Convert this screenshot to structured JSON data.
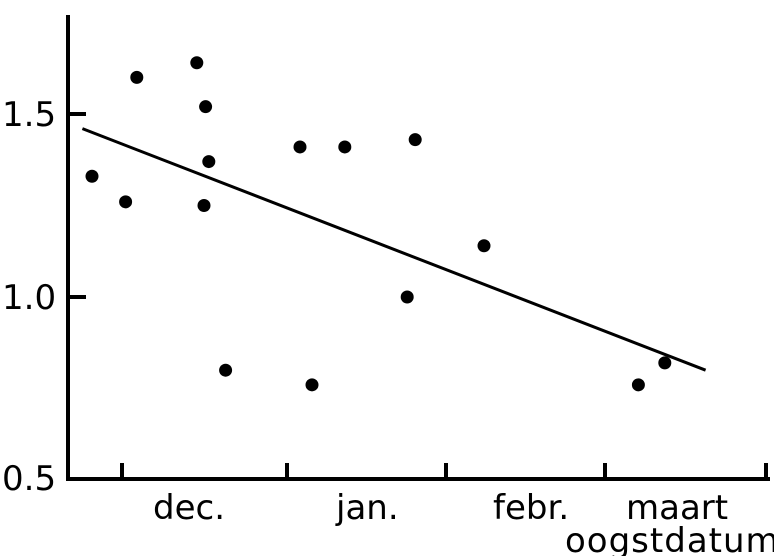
{
  "chart_data": {
    "type": "scatter",
    "title": "",
    "ylabel": "",
    "xlabel": "oogstdatum",
    "x_tick_labels": [
      "dec.",
      "jan.",
      "febr.",
      "maart"
    ],
    "y_tick_labels": [
      "0.5",
      "1.0",
      "1.5"
    ],
    "ylim": [
      0.5,
      1.75
    ],
    "grid": false,
    "points": [
      {
        "x": 0.3,
        "y": 1.33
      },
      {
        "x": 0.72,
        "y": 1.26
      },
      {
        "x": 0.86,
        "y": 1.6
      },
      {
        "x": 1.61,
        "y": 1.64
      },
      {
        "x": 1.72,
        "y": 1.52
      },
      {
        "x": 1.76,
        "y": 1.37
      },
      {
        "x": 1.7,
        "y": 1.25
      },
      {
        "x": 1.97,
        "y": 0.8
      },
      {
        "x": 2.9,
        "y": 1.41
      },
      {
        "x": 3.05,
        "y": 0.76
      },
      {
        "x": 3.46,
        "y": 1.41
      },
      {
        "x": 4.24,
        "y": 1.0
      },
      {
        "x": 4.34,
        "y": 1.43
      },
      {
        "x": 5.2,
        "y": 1.14
      },
      {
        "x": 7.13,
        "y": 0.76
      },
      {
        "x": 7.46,
        "y": 0.82
      }
    ],
    "trendline": {
      "x": [
        0.18,
        7.97
      ],
      "y": [
        1.46,
        0.8
      ]
    },
    "colors": {
      "ink": "#000000",
      "background": "#ffffff"
    }
  }
}
